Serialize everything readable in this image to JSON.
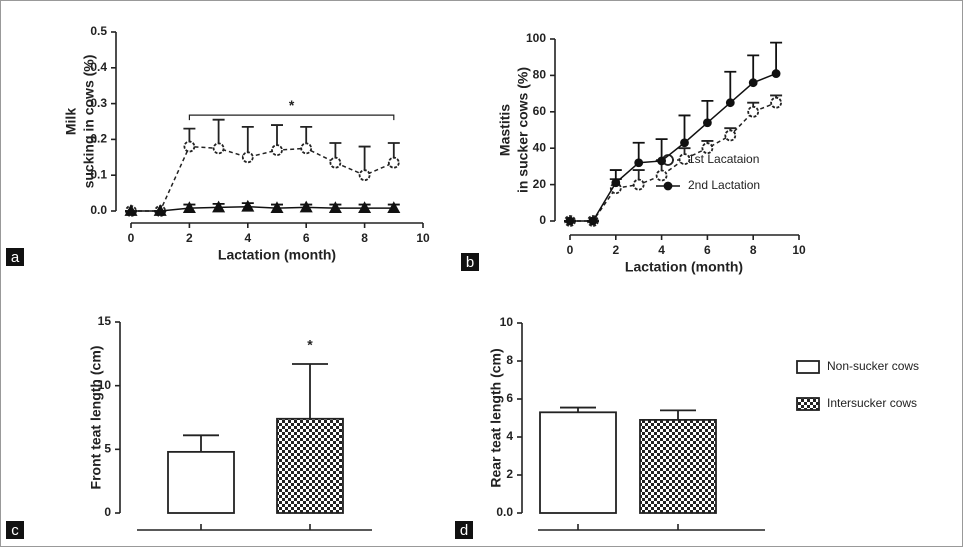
{
  "chart_data": [
    {
      "type": "line",
      "panel": "a",
      "ylabel": [
        "Milk",
        "sucking in cows (%)"
      ],
      "xlabel": "Lactation (month)",
      "x": [
        0,
        1,
        2,
        3,
        4,
        5,
        6,
        7,
        8,
        9
      ],
      "xlim": [
        0,
        10
      ],
      "xticks": [
        0,
        2,
        4,
        6,
        8,
        10
      ],
      "ylim": [
        0,
        0.5
      ],
      "yticks": [
        {
          "value": 0,
          "label": "0.0"
        },
        0.1,
        0.2,
        0.3,
        0.4,
        0.5
      ],
      "annotation": "*",
      "series": [
        {
          "color": "#222222",
          "marker": "open-circle",
          "dashed": true,
          "values": [
            0,
            0,
            0.18,
            0.175,
            0.15,
            0.17,
            0.175,
            0.135,
            0.1,
            0.135
          ],
          "errors": [
            0,
            0,
            0.05,
            0.08,
            0.085,
            0.07,
            0.06,
            0.055,
            0.08,
            0.055
          ]
        },
        {
          "color": "#111111",
          "marker": "triangle",
          "dashed": false,
          "values": [
            0,
            0,
            0.008,
            0.01,
            0.012,
            0.008,
            0.01,
            0.008,
            0.008,
            0.008
          ],
          "errors": [
            0,
            0,
            0.01,
            0.01,
            0.01,
            0.01,
            0.008,
            0.01,
            0.01,
            0.01
          ]
        }
      ]
    },
    {
      "type": "line",
      "panel": "b",
      "ylabel": [
        "Mastitis",
        "in sucker cows (%)"
      ],
      "xlabel": "Lactation (month)",
      "x": [
        0,
        1,
        2,
        3,
        4,
        5,
        6,
        7,
        8,
        9
      ],
      "xlim": [
        0,
        10
      ],
      "xticks": [
        0,
        2,
        4,
        6,
        8,
        10
      ],
      "ylim": [
        0,
        100
      ],
      "yticks": [
        0,
        20,
        40,
        60,
        80,
        100
      ],
      "series": [
        {
          "name": "1st  Lacataion",
          "color": "#222222",
          "marker": "open-circle",
          "dashed": true,
          "values": [
            0,
            0,
            18,
            20,
            25,
            34,
            40,
            47,
            60,
            65
          ],
          "errors": [
            0,
            0,
            5,
            8,
            8,
            6,
            4,
            4,
            5,
            4
          ]
        },
        {
          "name": "2nd Lactation",
          "color": "#111111",
          "marker": "filled-circle",
          "dashed": false,
          "values": [
            0,
            0,
            21,
            32,
            33,
            43,
            54,
            65,
            76,
            81
          ],
          "errors": [
            0,
            0,
            7,
            11,
            12,
            15,
            12,
            17,
            15,
            17
          ]
        }
      ]
    },
    {
      "type": "bar",
      "panel": "c",
      "ylabel": [
        "Front teat length (cm)"
      ],
      "categories": [
        null,
        null
      ],
      "ylim": [
        0,
        15
      ],
      "yticks": [
        0,
        5,
        10,
        15
      ],
      "annotation": "*",
      "series": [
        {
          "fill": "white",
          "values": [
            4.8,
            null
          ],
          "errors": [
            1.3,
            null
          ]
        },
        {
          "fill": "checker",
          "values": [
            null,
            7.4
          ],
          "errors": [
            null,
            4.3
          ]
        }
      ]
    },
    {
      "type": "bar",
      "panel": "d",
      "ylabel": [
        "Rear teat length (cm)"
      ],
      "categories": [
        null,
        null
      ],
      "ylim": [
        0,
        10
      ],
      "yticks": [
        {
          "value": 0,
          "label": "0.0"
        },
        2,
        4,
        6,
        8,
        10
      ],
      "series": [
        {
          "name": "Non-sucker cows",
          "fill": "white",
          "values": [
            5.3,
            null
          ],
          "errors": [
            0.25,
            null
          ]
        },
        {
          "name": "Intersucker cows",
          "fill": "checker",
          "values": [
            null,
            4.9
          ],
          "errors": [
            null,
            0.5
          ]
        }
      ]
    }
  ]
}
